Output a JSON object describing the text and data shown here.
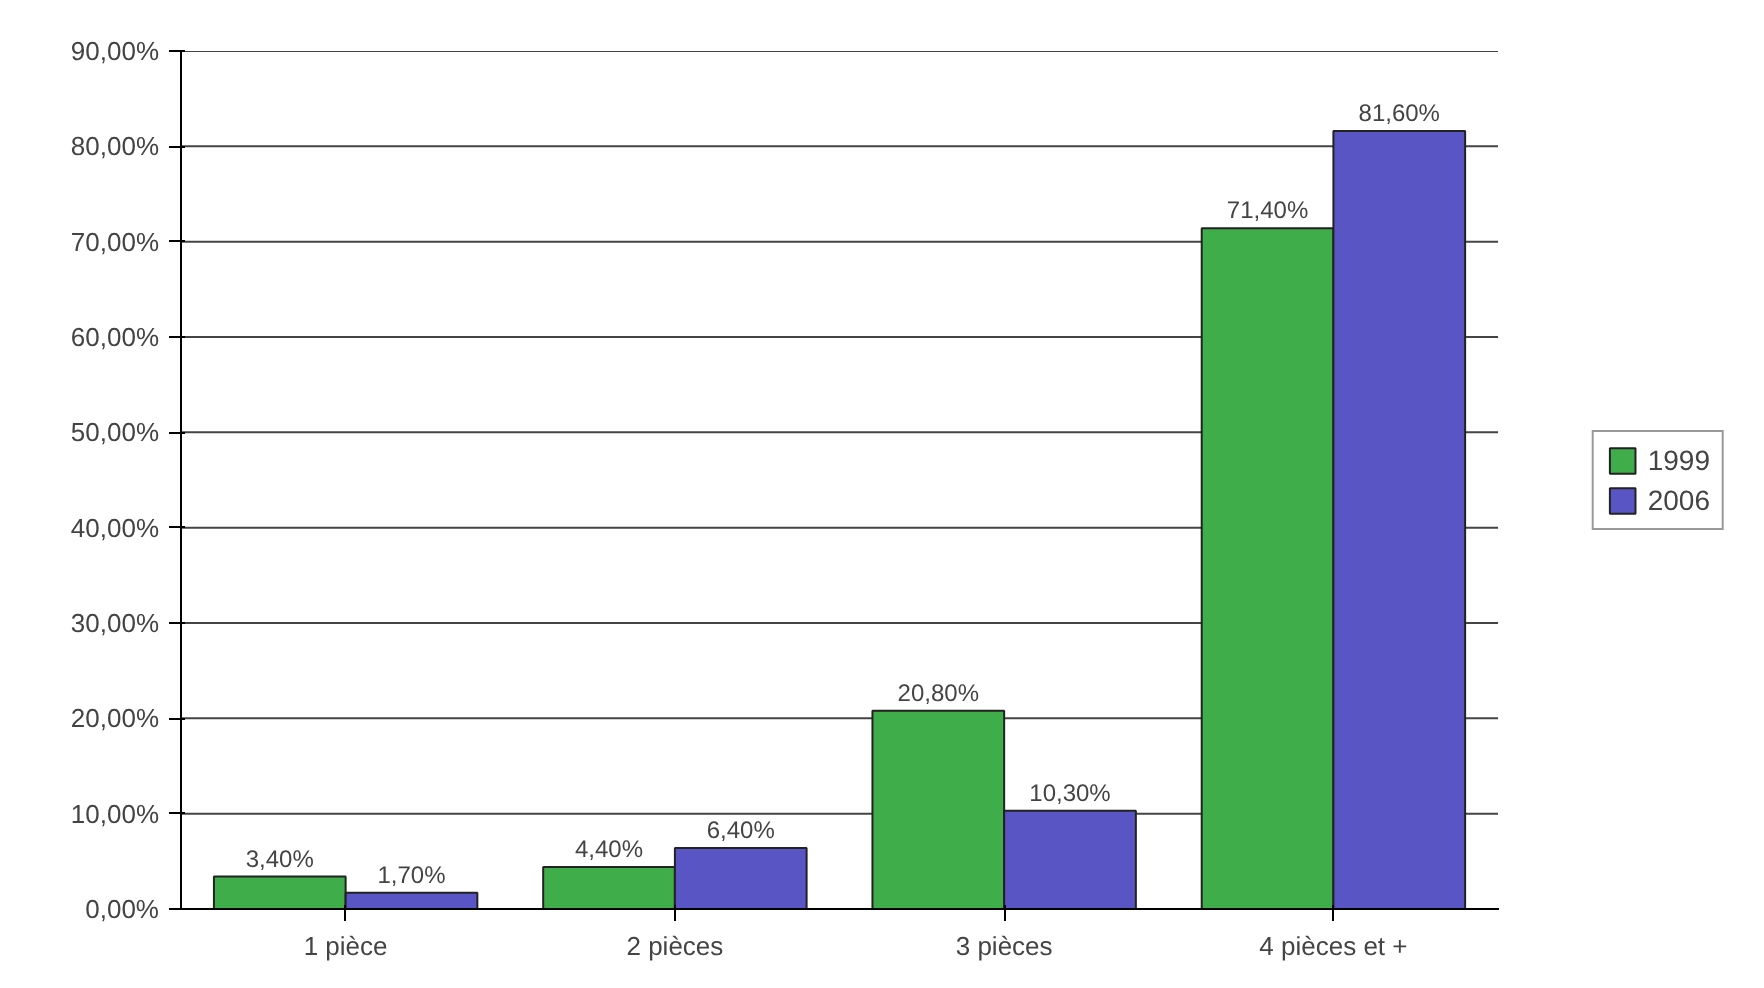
{
  "chart_data": {
    "type": "bar",
    "categories": [
      "1 pièce",
      "2 pièces",
      "3 pièces",
      "4 pièces et +"
    ],
    "series": [
      {
        "name": "1999",
        "color": "#3fae4a",
        "values": [
          3.4,
          4.4,
          20.8,
          71.4
        ],
        "value_labels": [
          "3,40%",
          "4,40%",
          "20,80%",
          "71,40%"
        ]
      },
      {
        "name": "2006",
        "color": "#5a55c4",
        "values": [
          1.7,
          6.4,
          10.3,
          81.6
        ],
        "value_labels": [
          "1,70%",
          "6,40%",
          "10,30%",
          "81,60%"
        ]
      }
    ],
    "ylim": [
      0,
      90
    ],
    "yticks": [
      {
        "value": 0,
        "label": "0,00%"
      },
      {
        "value": 10,
        "label": "10,00%"
      },
      {
        "value": 20,
        "label": "20,00%"
      },
      {
        "value": 30,
        "label": "30,00%"
      },
      {
        "value": 40,
        "label": "40,00%"
      },
      {
        "value": 50,
        "label": "50,00%"
      },
      {
        "value": 60,
        "label": "60,00%"
      },
      {
        "value": 70,
        "label": "70,00%"
      },
      {
        "value": 80,
        "label": "80,00%"
      },
      {
        "value": 90,
        "label": "90,00%"
      }
    ],
    "grid": "y",
    "legend": "right"
  }
}
